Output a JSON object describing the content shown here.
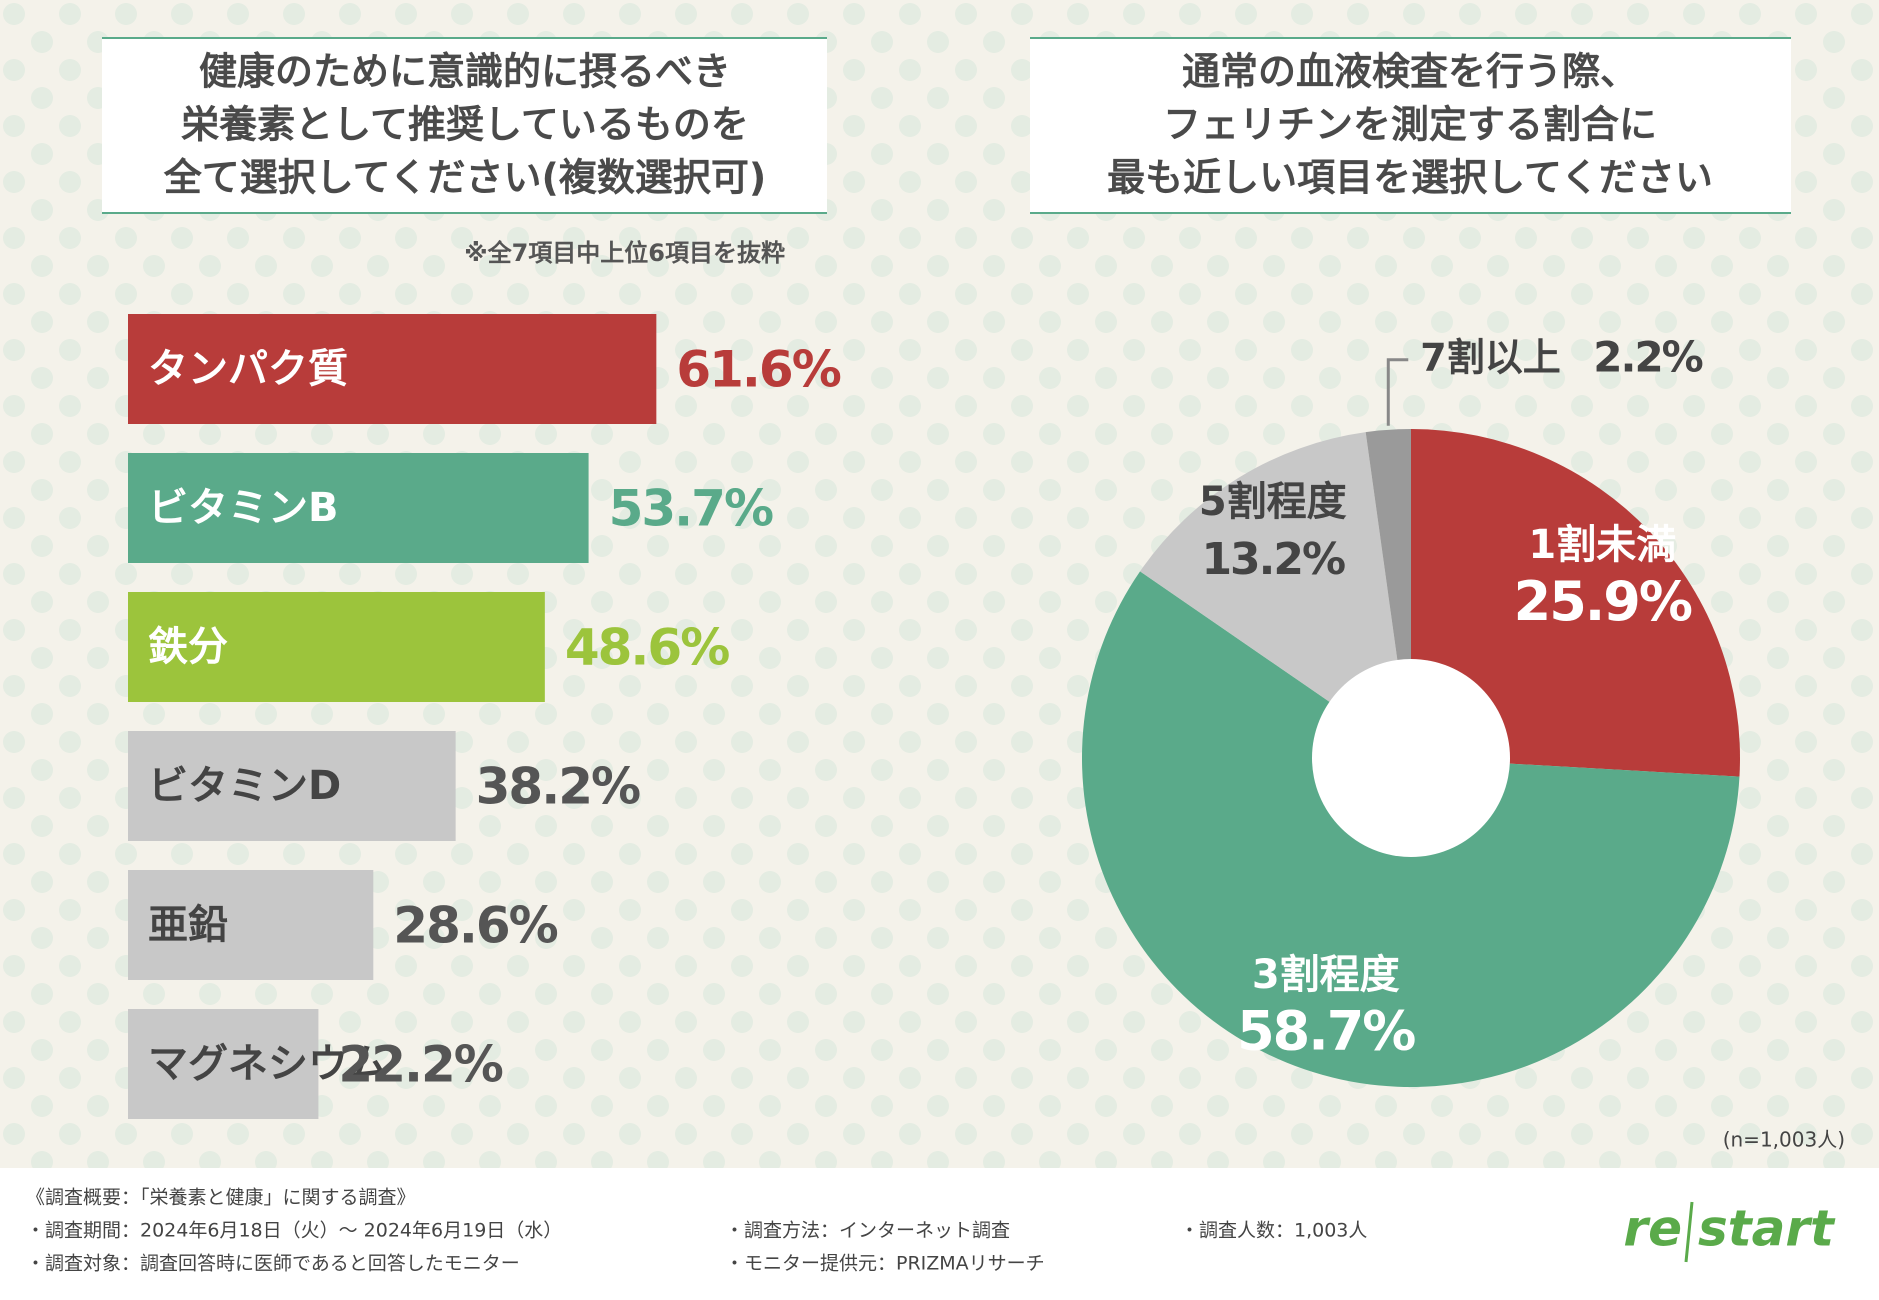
{
  "chart_data": [
    {
      "type": "bar",
      "title": [
        "健康のために意識的に摂るべき",
        "栄養素として推奨しているものを",
        "全て選択してください(複数選択可)"
      ],
      "annotation": "※全7項目中上位6項目を抜粋",
      "categories": [
        "タンパク質",
        "ビタミンB",
        "鉄分",
        "ビタミンD",
        "亜鉛",
        "マグネシウム"
      ],
      "values": [
        61.6,
        53.7,
        48.6,
        38.2,
        28.6,
        22.2
      ],
      "value_labels": [
        "61.6%",
        "53.7%",
        "48.6%",
        "38.2%",
        "28.6%",
        "22.2%"
      ],
      "colors": [
        "#b83c3a",
        "#5aaa8a",
        "#9cc43c",
        "#c8c8c8",
        "#c8c8c8",
        "#c8c8c8"
      ],
      "label_colors": [
        "#ffffff",
        "#ffffff",
        "#ffffff",
        "#444444",
        "#444444",
        "#444444"
      ],
      "value_label_colors": [
        "#b83c3a",
        "#5aaa8a",
        "#9cc43c",
        "#555555",
        "#555555",
        "#555555"
      ]
    },
    {
      "type": "pie",
      "title": [
        "通常の血液検査を行う際、",
        "フェリチンを測定する割合に",
        "最も近しい項目を選択してください"
      ],
      "categories": [
        "1割未満",
        "3割程度",
        "5割程度",
        "7割以上"
      ],
      "values": [
        25.9,
        58.7,
        13.2,
        2.2
      ],
      "value_labels": [
        "25.9%",
        "58.7%",
        "13.2%",
        "2.2%"
      ],
      "colors": [
        "#b83c3a",
        "#5aaa8a",
        "#c8c8c8",
        "#9a9a9a"
      ],
      "label_colors": [
        "#ffffff",
        "#ffffff",
        "#444444",
        "#444444"
      ],
      "annotation": "(n=1,003人)"
    }
  ],
  "footer": {
    "heading": "《調査概要：「栄養素と健康」に関する調査》",
    "items": [
      "・調査期間：2024年6月18日（火）～ 2024年6月19日（水）",
      "・調査対象：調査回答時に医師であると回答したモニター",
      "・調査方法：インターネット調査",
      "・モニター提供元：PRIZMAリサーチ",
      "・調査人数：1,003人"
    ],
    "logo": [
      "re",
      "start"
    ]
  }
}
